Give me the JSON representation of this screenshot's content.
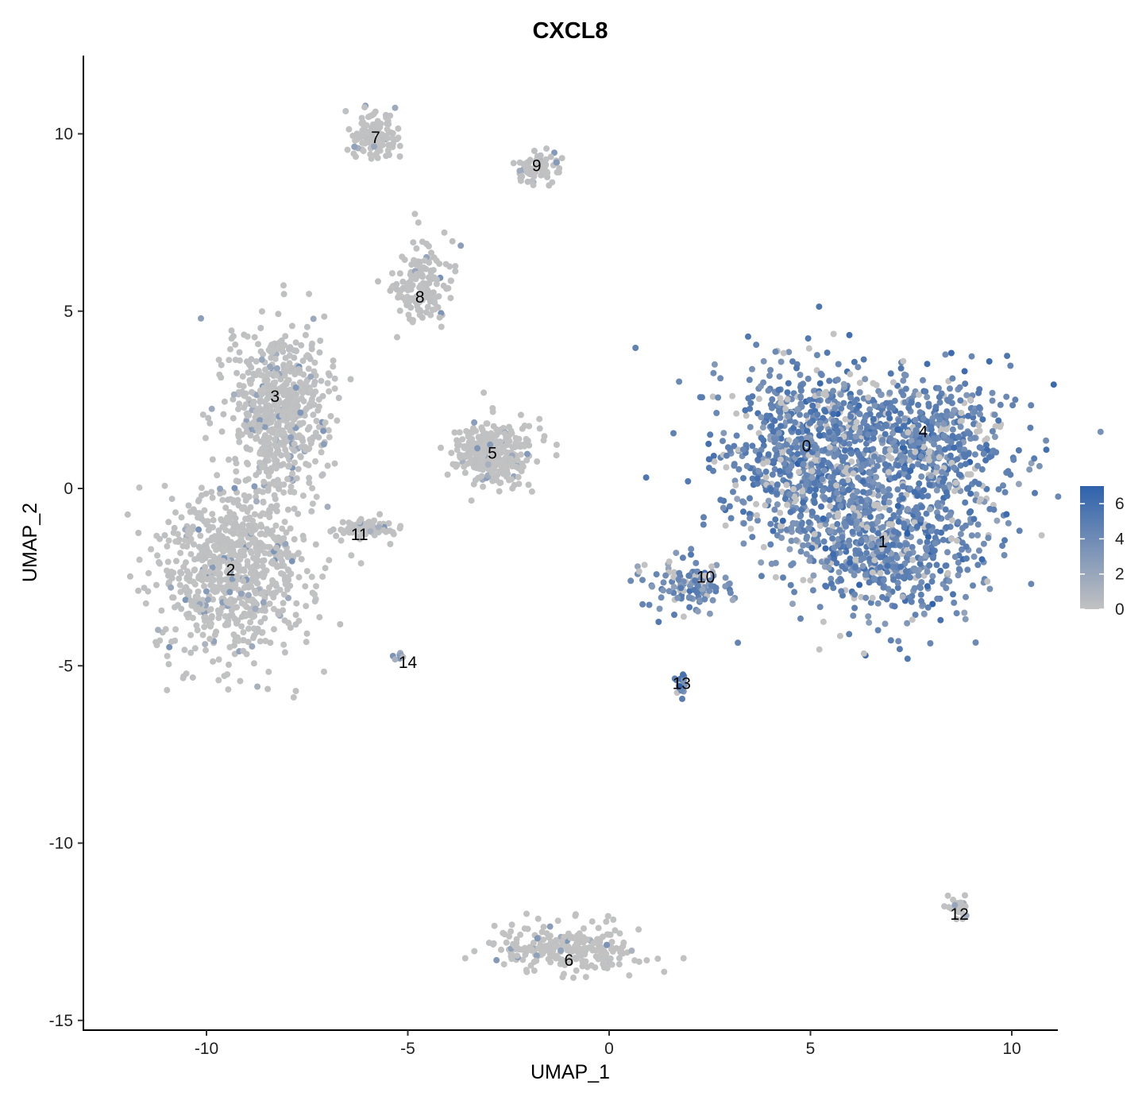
{
  "chart_data": {
    "type": "scatter",
    "title": "CXCL8",
    "xlabel": "UMAP_1",
    "ylabel": "UMAP_2",
    "xlim": [
      -13,
      11.2
    ],
    "ylim": [
      -15.2,
      12.2
    ],
    "xticks": [
      -10,
      -5,
      0,
      5,
      10
    ],
    "yticks": [
      -15,
      -10,
      -5,
      0,
      5,
      10
    ],
    "grid": false,
    "legend": {
      "placement": "right",
      "type": "colorbar",
      "min": 0,
      "max": 7,
      "ticks": [
        0,
        2,
        4,
        6
      ],
      "low_color": "#c2c2c2",
      "high_color": "#2f62ac"
    },
    "series": [
      {
        "cluster_labels": [
          {
            "label": "0",
            "x": 4.9,
            "y": 1.2
          },
          {
            "label": "1",
            "x": 6.8,
            "y": -1.5
          },
          {
            "label": "2",
            "x": -9.4,
            "y": -2.3
          },
          {
            "label": "3",
            "x": -8.3,
            "y": 2.6
          },
          {
            "label": "4",
            "x": 7.8,
            "y": 1.6
          },
          {
            "label": "5",
            "x": -2.9,
            "y": 1.0
          },
          {
            "label": "6",
            "x": -1.0,
            "y": -13.3
          },
          {
            "label": "7",
            "x": -5.8,
            "y": 9.9
          },
          {
            "label": "8",
            "x": -4.7,
            "y": 5.4
          },
          {
            "label": "9",
            "x": -1.8,
            "y": 9.1
          },
          {
            "label": "10",
            "x": 2.4,
            "y": -2.5
          },
          {
            "label": "11",
            "x": -6.2,
            "y": -1.3
          },
          {
            "label": "12",
            "x": 8.7,
            "y": -12.0
          },
          {
            "label": "13",
            "x": 1.8,
            "y": -5.5
          },
          {
            "label": "14",
            "x": -5.0,
            "y": -4.9
          }
        ]
      }
    ],
    "clusters": [
      {
        "id": "0",
        "cx": 4.9,
        "cy": 1.1,
        "sx": 1.1,
        "sy": 1.3,
        "n": 750,
        "expr": 4.6
      },
      {
        "id": "4",
        "cx": 7.7,
        "cy": 1.4,
        "sx": 1.2,
        "sy": 0.9,
        "n": 600,
        "expr": 4.6
      },
      {
        "id": "1",
        "cx": 6.8,
        "cy": -1.5,
        "sx": 1.3,
        "sy": 1.0,
        "n": 700,
        "expr": 4.4
      },
      {
        "id": "10",
        "cx": 2.0,
        "cy": -2.7,
        "sx": 0.6,
        "sy": 0.4,
        "n": 120,
        "expr": 4.0
      },
      {
        "id": "13",
        "cx": 1.75,
        "cy": -5.5,
        "sx": 0.07,
        "sy": 0.12,
        "n": 20,
        "expr": 5.5
      },
      {
        "id": "2",
        "cx": -9.3,
        "cy": -2.3,
        "sx": 0.95,
        "sy": 1.15,
        "n": 800,
        "expr": 0.5
      },
      {
        "id": "3",
        "cx": -8.2,
        "cy": 2.2,
        "sx": 0.6,
        "sy": 1.2,
        "n": 600,
        "expr": 0.6
      },
      {
        "id": "5",
        "cx": -2.9,
        "cy": 1.0,
        "sx": 0.5,
        "sy": 0.45,
        "n": 300,
        "expr": 0.3
      },
      {
        "id": "6",
        "cx": -1.0,
        "cy": -13.0,
        "sx": 0.9,
        "sy": 0.3,
        "n": 260,
        "expr": 0.2
      },
      {
        "id": "7",
        "cx": -5.8,
        "cy": 9.9,
        "sx": 0.3,
        "sy": 0.3,
        "n": 120,
        "expr": 0.3
      },
      {
        "id": "8",
        "cx": -4.6,
        "cy": 5.8,
        "sx": 0.35,
        "sy": 0.6,
        "n": 150,
        "expr": 0.5
      },
      {
        "id": "9",
        "cx": -1.8,
        "cy": 9.1,
        "sx": 0.25,
        "sy": 0.25,
        "n": 70,
        "expr": 0.6
      },
      {
        "id": "11",
        "cx": -6.1,
        "cy": -1.1,
        "sx": 0.35,
        "sy": 0.15,
        "n": 70,
        "expr": 0.4
      },
      {
        "id": "12",
        "cx": 8.6,
        "cy": -11.8,
        "sx": 0.15,
        "sy": 0.15,
        "n": 25,
        "expr": 0.3
      },
      {
        "id": "14",
        "cx": -5.2,
        "cy": -4.7,
        "sx": 0.1,
        "sy": 0.1,
        "n": 8,
        "expr": 2.5
      }
    ]
  }
}
